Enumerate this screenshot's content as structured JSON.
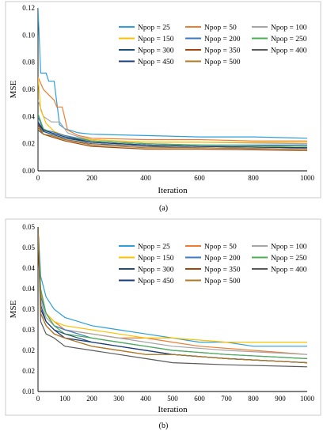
{
  "chart_data": [
    {
      "type": "line",
      "panel_label": "(a)",
      "xlabel": "Iteration",
      "ylabel": "MSE",
      "xlim": [
        0,
        1000
      ],
      "ylim": [
        0,
        0.12
      ],
      "x_ticks": [
        "0",
        "200",
        "400",
        "600",
        "800",
        "1000"
      ],
      "y_ticks": [
        "0.00",
        "0.02",
        "0.04",
        "0.06",
        "0.08",
        "0.10",
        "0.12"
      ],
      "grid": false,
      "legend_position": "top-right",
      "series": [
        {
          "name": "Npop = 25",
          "color": "#2e9fd8",
          "points": [
            [
              0,
              0.12
            ],
            [
              10,
              0.072
            ],
            [
              30,
              0.072
            ],
            [
              40,
              0.066
            ],
            [
              60,
              0.066
            ],
            [
              80,
              0.034
            ],
            [
              100,
              0.031
            ],
            [
              150,
              0.028
            ],
            [
              200,
              0.027
            ],
            [
              400,
              0.026
            ],
            [
              600,
              0.025
            ],
            [
              800,
              0.025
            ],
            [
              1000,
              0.024
            ]
          ]
        },
        {
          "name": "Npop = 50",
          "color": "#ed7d31",
          "points": [
            [
              0,
              0.069
            ],
            [
              20,
              0.06
            ],
            [
              40,
              0.056
            ],
            [
              60,
              0.052
            ],
            [
              70,
              0.047
            ],
            [
              90,
              0.047
            ],
            [
              110,
              0.03
            ],
            [
              150,
              0.026
            ],
            [
              200,
              0.024
            ],
            [
              400,
              0.023
            ],
            [
              600,
              0.023
            ],
            [
              800,
              0.022
            ],
            [
              1000,
              0.022
            ]
          ]
        },
        {
          "name": "Npop = 100",
          "color": "#a5a5a5",
          "points": [
            [
              0,
              0.052
            ],
            [
              20,
              0.04
            ],
            [
              50,
              0.036
            ],
            [
              80,
              0.036
            ],
            [
              110,
              0.028
            ],
            [
              150,
              0.025
            ],
            [
              200,
              0.023
            ],
            [
              400,
              0.021
            ],
            [
              600,
              0.021
            ],
            [
              1000,
              0.02
            ]
          ]
        },
        {
          "name": "Npop = 150",
          "color": "#ffc000",
          "points": [
            [
              0,
              0.069
            ],
            [
              10,
              0.045
            ],
            [
              30,
              0.035
            ],
            [
              60,
              0.029
            ],
            [
              100,
              0.026
            ],
            [
              150,
              0.024
            ],
            [
              200,
              0.023
            ],
            [
              400,
              0.021
            ],
            [
              600,
              0.021
            ],
            [
              1000,
              0.021
            ]
          ]
        },
        {
          "name": "Npop = 200",
          "color": "#3d79c4",
          "points": [
            [
              0,
              0.04
            ],
            [
              20,
              0.03
            ],
            [
              50,
              0.029
            ],
            [
              100,
              0.026
            ],
            [
              150,
              0.024
            ],
            [
              200,
              0.022
            ],
            [
              400,
              0.02
            ],
            [
              600,
              0.019
            ],
            [
              1000,
              0.019
            ]
          ]
        },
        {
          "name": "Npop = 250",
          "color": "#4caf50",
          "points": [
            [
              0,
              0.042
            ],
            [
              20,
              0.031
            ],
            [
              50,
              0.028
            ],
            [
              100,
              0.025
            ],
            [
              200,
              0.022
            ],
            [
              400,
              0.02
            ],
            [
              600,
              0.019
            ],
            [
              1000,
              0.018
            ]
          ]
        },
        {
          "name": "Npop = 300",
          "color": "#1f4e79",
          "points": [
            [
              0,
              0.035
            ],
            [
              20,
              0.029
            ],
            [
              50,
              0.027
            ],
            [
              100,
              0.024
            ],
            [
              200,
              0.021
            ],
            [
              400,
              0.019
            ],
            [
              600,
              0.018
            ],
            [
              1000,
              0.017
            ]
          ]
        },
        {
          "name": "Npop = 350",
          "color": "#9e480e",
          "points": [
            [
              0,
              0.034
            ],
            [
              20,
              0.027
            ],
            [
              50,
              0.025
            ],
            [
              100,
              0.022
            ],
            [
              200,
              0.018
            ],
            [
              400,
              0.016
            ],
            [
              600,
              0.016
            ],
            [
              1000,
              0.015
            ]
          ]
        },
        {
          "name": "Npop = 400",
          "color": "#595959",
          "points": [
            [
              0,
              0.03
            ],
            [
              20,
              0.027
            ],
            [
              50,
              0.026
            ],
            [
              100,
              0.023
            ],
            [
              200,
              0.02
            ],
            [
              400,
              0.018
            ],
            [
              600,
              0.017
            ],
            [
              1000,
              0.016
            ]
          ]
        },
        {
          "name": "Npop = 450",
          "color": "#1a3a7a",
          "points": [
            [
              0,
              0.036
            ],
            [
              20,
              0.03
            ],
            [
              50,
              0.028
            ],
            [
              100,
              0.025
            ],
            [
              200,
              0.021
            ],
            [
              400,
              0.019
            ],
            [
              600,
              0.018
            ],
            [
              1000,
              0.017
            ]
          ]
        },
        {
          "name": "Npop = 500",
          "color": "#b07a22",
          "points": [
            [
              0,
              0.032
            ],
            [
              20,
              0.027
            ],
            [
              50,
              0.026
            ],
            [
              100,
              0.023
            ],
            [
              200,
              0.019
            ],
            [
              400,
              0.017
            ],
            [
              600,
              0.017
            ],
            [
              1000,
              0.016
            ]
          ]
        }
      ]
    },
    {
      "type": "line",
      "panel_label": "(b)",
      "xlabel": "Iteration",
      "ylabel": "MSE",
      "xlim": [
        0,
        1000
      ],
      "ylim": [
        0.01,
        0.05
      ],
      "x_ticks": [
        "0",
        "100",
        "200",
        "300",
        "400",
        "500",
        "600",
        "700",
        "800",
        "900",
        "1000"
      ],
      "y_ticks": [
        "0.01",
        "0.02",
        "0.02",
        "0.03",
        "0.03",
        "0.04",
        "0.04",
        "0.05",
        "0.05"
      ],
      "grid": false,
      "legend_position": "top-right",
      "series": [
        {
          "name": "Npop = 25",
          "color": "#2e9fd8",
          "points": [
            [
              0,
              0.05
            ],
            [
              10,
              0.038
            ],
            [
              30,
              0.033
            ],
            [
              60,
              0.03
            ],
            [
              100,
              0.028
            ],
            [
              150,
              0.027
            ],
            [
              200,
              0.026
            ],
            [
              300,
              0.025
            ],
            [
              400,
              0.024
            ],
            [
              500,
              0.023
            ],
            [
              600,
              0.022
            ],
            [
              700,
              0.022
            ],
            [
              800,
              0.021
            ],
            [
              900,
              0.021
            ],
            [
              1000,
              0.021
            ]
          ]
        },
        {
          "name": "Npop = 50",
          "color": "#ed7d31",
          "points": [
            [
              0,
              0.05
            ],
            [
              10,
              0.034
            ],
            [
              30,
              0.029
            ],
            [
              60,
              0.027
            ],
            [
              100,
              0.025
            ],
            [
              200,
              0.024
            ],
            [
              300,
              0.023
            ],
            [
              400,
              0.023
            ],
            [
              500,
              0.022
            ],
            [
              600,
              0.021
            ],
            [
              800,
              0.02
            ],
            [
              1000,
              0.019
            ]
          ]
        },
        {
          "name": "Npop = 100",
          "color": "#a5a5a5",
          "points": [
            [
              0,
              0.05
            ],
            [
              10,
              0.032
            ],
            [
              30,
              0.028
            ],
            [
              60,
              0.026
            ],
            [
              100,
              0.025
            ],
            [
              200,
              0.024
            ],
            [
              300,
              0.023
            ],
            [
              400,
              0.022
            ],
            [
              500,
              0.021
            ],
            [
              700,
              0.02
            ],
            [
              1000,
              0.019
            ]
          ]
        },
        {
          "name": "Npop = 150",
          "color": "#ffc000",
          "points": [
            [
              0,
              0.05
            ],
            [
              10,
              0.033
            ],
            [
              30,
              0.029
            ],
            [
              60,
              0.027
            ],
            [
              100,
              0.026
            ],
            [
              200,
              0.025
            ],
            [
              300,
              0.024
            ],
            [
              400,
              0.023
            ],
            [
              500,
              0.023
            ],
            [
              700,
              0.022
            ],
            [
              1000,
              0.022
            ]
          ]
        },
        {
          "name": "Npop = 200",
          "color": "#3d79c4",
          "points": [
            [
              0,
              0.05
            ],
            [
              10,
              0.033
            ],
            [
              30,
              0.029
            ],
            [
              60,
              0.026
            ],
            [
              100,
              0.025
            ],
            [
              200,
              0.023
            ],
            [
              300,
              0.022
            ],
            [
              400,
              0.021
            ],
            [
              500,
              0.02
            ],
            [
              700,
              0.019
            ],
            [
              1000,
              0.018
            ]
          ]
        },
        {
          "name": "Npop = 250",
          "color": "#4caf50",
          "points": [
            [
              0,
              0.05
            ],
            [
              10,
              0.035
            ],
            [
              30,
              0.029
            ],
            [
              60,
              0.026
            ],
            [
              100,
              0.024
            ],
            [
              200,
              0.023
            ],
            [
              300,
              0.022
            ],
            [
              400,
              0.021
            ],
            [
              500,
              0.02
            ],
            [
              700,
              0.019
            ],
            [
              1000,
              0.018
            ]
          ]
        },
        {
          "name": "Npop = 300",
          "color": "#1f4e79",
          "points": [
            [
              0,
              0.05
            ],
            [
              10,
              0.031
            ],
            [
              30,
              0.027
            ],
            [
              60,
              0.025
            ],
            [
              100,
              0.024
            ],
            [
              200,
              0.022
            ],
            [
              300,
              0.021
            ],
            [
              400,
              0.02
            ],
            [
              500,
              0.019
            ],
            [
              700,
              0.018
            ],
            [
              1000,
              0.017
            ]
          ]
        },
        {
          "name": "Npop = 350",
          "color": "#9e480e",
          "points": [
            [
              0,
              0.05
            ],
            [
              10,
              0.029
            ],
            [
              30,
              0.026
            ],
            [
              60,
              0.024
            ],
            [
              100,
              0.023
            ],
            [
              200,
              0.021
            ],
            [
              300,
              0.02
            ],
            [
              400,
              0.019
            ],
            [
              500,
              0.019
            ],
            [
              700,
              0.018
            ],
            [
              1000,
              0.017
            ]
          ]
        },
        {
          "name": "Npop = 400",
          "color": "#595959",
          "points": [
            [
              0,
              0.05
            ],
            [
              10,
              0.027
            ],
            [
              30,
              0.024
            ],
            [
              60,
              0.023
            ],
            [
              100,
              0.021
            ],
            [
              200,
              0.02
            ],
            [
              300,
              0.019
            ],
            [
              400,
              0.018
            ],
            [
              500,
              0.017
            ],
            [
              700,
              0.0165
            ],
            [
              1000,
              0.016
            ]
          ]
        },
        {
          "name": "Npop = 450",
          "color": "#1a3a7a",
          "points": [
            [
              0,
              0.05
            ],
            [
              10,
              0.03
            ],
            [
              30,
              0.027
            ],
            [
              60,
              0.025
            ],
            [
              100,
              0.023
            ],
            [
              200,
              0.022
            ],
            [
              300,
              0.021
            ],
            [
              400,
              0.02
            ],
            [
              500,
              0.019
            ],
            [
              700,
              0.018
            ],
            [
              1000,
              0.017
            ]
          ]
        },
        {
          "name": "Npop = 500",
          "color": "#b07a22",
          "points": [
            [
              0,
              0.05
            ],
            [
              10,
              0.029
            ],
            [
              30,
              0.026
            ],
            [
              60,
              0.024
            ],
            [
              100,
              0.023
            ],
            [
              200,
              0.021
            ],
            [
              300,
              0.02
            ],
            [
              400,
              0.019
            ],
            [
              500,
              0.019
            ],
            [
              700,
              0.018
            ],
            [
              1000,
              0.017
            ]
          ]
        }
      ]
    }
  ]
}
